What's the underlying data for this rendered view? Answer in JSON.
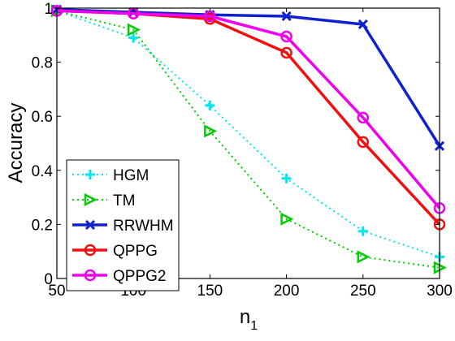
{
  "chart_data": {
    "type": "line",
    "xlabel_base": "n",
    "xlabel_sub": "1",
    "ylabel": "Accuracy",
    "x": [
      50,
      100,
      150,
      200,
      250,
      300
    ],
    "xlim": [
      50,
      300
    ],
    "ylim": [
      0,
      1
    ],
    "xticks": [
      "50",
      "100",
      "150",
      "200",
      "250",
      "300"
    ],
    "yticks": [
      "0",
      "0.2",
      "0.4",
      "0.6",
      "0.8",
      "1"
    ],
    "grid": false,
    "legend_position": "bottom-left",
    "series": [
      {
        "name": "HGM",
        "values": [
          0.99,
          0.89,
          0.64,
          0.37,
          0.175,
          0.08
        ],
        "color": "#00e5ee",
        "style": "dotted",
        "marker": "plus"
      },
      {
        "name": "TM",
        "values": [
          0.99,
          0.92,
          0.545,
          0.22,
          0.08,
          0.04
        ],
        "color": "#00cc00",
        "style": "dotted",
        "marker": "triangle-right"
      },
      {
        "name": "RRWHM",
        "values": [
          0.995,
          0.985,
          0.975,
          0.97,
          0.94,
          0.49
        ],
        "color": "#1020d0",
        "style": "solid",
        "marker": "x"
      },
      {
        "name": "QPPG",
        "values": [
          0.99,
          0.98,
          0.96,
          0.835,
          0.505,
          0.2
        ],
        "color": "#ee1111",
        "style": "solid",
        "marker": "circle"
      },
      {
        "name": "QPPG2",
        "values": [
          0.99,
          0.98,
          0.97,
          0.895,
          0.595,
          0.26
        ],
        "color": "#ee00ee",
        "style": "solid",
        "marker": "circle"
      }
    ]
  }
}
